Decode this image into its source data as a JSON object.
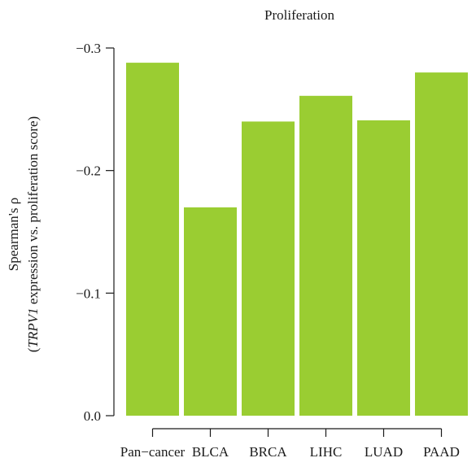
{
  "chart_data": {
    "type": "bar",
    "title": "Proliferation",
    "ylabel_line1": "Spearman's ρ",
    "ylabel_line2_italic": "TRPV1",
    "ylabel_line2_rest": " expression vs. proliferation score)",
    "ylabel_line2_open": "(",
    "xlabel": "",
    "categories": [
      "Pan−cancer",
      "BLCA",
      "BRCA",
      "LIHC",
      "LUAD",
      "PAAD"
    ],
    "values": [
      -0.288,
      -0.17,
      -0.24,
      -0.261,
      -0.241,
      -0.28
    ],
    "ylim": [
      0.0,
      -0.3
    ],
    "yticks": [
      0.0,
      -0.1,
      -0.2,
      -0.3
    ],
    "ytick_labels": [
      "0.0",
      "−0.1",
      "−0.2",
      "−0.3"
    ],
    "bar_color": "#9ACD32",
    "axis_color": "#1a1a1a",
    "grid": false,
    "legend": "none"
  }
}
